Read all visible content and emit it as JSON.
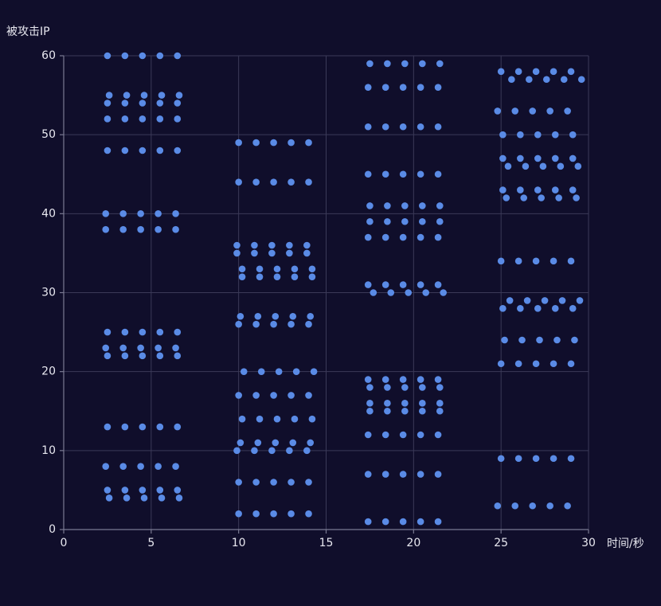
{
  "chart_data": {
    "type": "scatter",
    "x_label": "时间/秒",
    "y_label": "被攻击IP",
    "color": "#5a8be6",
    "grid": true,
    "xlim": [
      0,
      30
    ],
    "xticks": [
      0,
      5,
      10,
      15,
      20,
      25,
      30
    ],
    "ylim": [
      0,
      60
    ],
    "yticks": [
      0,
      10,
      20,
      30,
      40,
      50,
      60
    ],
    "x": [
      2.5,
      3.5,
      4.5,
      5.5,
      6.5,
      2.6,
      3.6,
      4.6,
      5.6,
      6.6,
      2.5,
      3.5,
      4.5,
      5.5,
      6.5,
      2.5,
      3.5,
      4.5,
      5.5,
      6.5,
      2.5,
      3.5,
      4.5,
      5.5,
      6.5,
      2.4,
      3.4,
      4.4,
      5.4,
      6.4,
      2.4,
      3.4,
      4.4,
      5.4,
      6.4,
      2.5,
      3.5,
      4.5,
      5.5,
      6.5,
      2.4,
      3.4,
      4.4,
      5.4,
      6.4,
      2.5,
      3.5,
      4.5,
      5.5,
      6.5,
      2.5,
      3.5,
      4.5,
      5.5,
      6.5,
      2.4,
      3.4,
      4.4,
      5.4,
      6.4,
      2.5,
      3.5,
      4.5,
      5.5,
      6.5,
      2.6,
      3.6,
      4.6,
      5.6,
      6.6,
      10,
      11,
      12,
      13,
      14,
      10,
      11,
      12,
      13,
      14,
      9.9,
      10.9,
      11.9,
      12.9,
      13.9,
      9.9,
      10.9,
      11.9,
      12.9,
      13.9,
      10.2,
      11.2,
      12.2,
      13.2,
      14.2,
      10.2,
      11.2,
      12.2,
      13.2,
      14.2,
      10.1,
      11.1,
      12.1,
      13.1,
      14.1,
      10,
      11,
      12,
      13,
      14,
      10.3,
      11.3,
      12.3,
      13.3,
      14.3,
      10,
      11,
      12,
      13,
      14,
      10.2,
      11.2,
      12.2,
      13.2,
      14.2,
      10.1,
      11.1,
      12.1,
      13.1,
      14.1,
      9.9,
      10.9,
      11.9,
      12.9,
      13.9,
      10,
      11,
      12,
      13,
      14,
      10,
      11,
      12,
      13,
      14,
      17.5,
      18.5,
      19.5,
      20.5,
      21.5,
      17.4,
      18.4,
      19.4,
      20.4,
      21.4,
      17.4,
      18.4,
      19.4,
      20.4,
      21.4,
      17.4,
      18.4,
      19.4,
      20.4,
      21.4,
      17.5,
      18.5,
      19.5,
      20.5,
      21.5,
      17.5,
      18.5,
      19.5,
      20.5,
      21.5,
      17.4,
      18.4,
      19.4,
      20.4,
      21.4,
      17.4,
      18.4,
      19.4,
      20.4,
      21.4,
      17.7,
      18.7,
      19.7,
      20.7,
      21.7,
      17.4,
      18.4,
      19.4,
      20.4,
      21.4,
      17.5,
      18.5,
      19.5,
      20.5,
      21.5,
      17.5,
      18.5,
      19.5,
      20.5,
      21.5,
      17.5,
      18.5,
      19.5,
      20.5,
      21.5,
      17.4,
      18.4,
      19.4,
      20.4,
      21.4,
      17.4,
      18.4,
      19.4,
      20.4,
      21.4,
      17.4,
      18.4,
      19.4,
      20.4,
      21.4,
      25,
      26,
      27,
      28,
      29,
      25.6,
      26.6,
      27.6,
      28.6,
      29.6,
      24.8,
      25.8,
      26.8,
      27.8,
      28.8,
      25.1,
      26.1,
      27.1,
      28.1,
      29.1,
      25.1,
      26.1,
      27.1,
      28.1,
      29.1,
      25.4,
      26.4,
      27.4,
      28.4,
      29.4,
      25.1,
      26.1,
      27.1,
      28.1,
      29.1,
      25.3,
      26.3,
      27.3,
      28.3,
      29.3,
      25,
      26,
      27,
      28,
      29,
      25.5,
      26.5,
      27.5,
      28.5,
      29.5,
      25.1,
      26.1,
      27.1,
      28.1,
      29.1,
      25.2,
      26.2,
      27.2,
      28.2,
      29.2,
      25,
      26,
      27,
      28,
      29,
      25,
      26,
      27,
      28,
      29,
      24.8,
      25.8,
      26.8,
      27.8,
      28.8
    ],
    "values": [
      60,
      60,
      60,
      60,
      60,
      55,
      55,
      55,
      55,
      55,
      54,
      54,
      54,
      54,
      54,
      52,
      52,
      52,
      52,
      52,
      48,
      48,
      48,
      48,
      48,
      40,
      40,
      40,
      40,
      40,
      38,
      38,
      38,
      38,
      38,
      25,
      25,
      25,
      25,
      25,
      23,
      23,
      23,
      23,
      23,
      22,
      22,
      22,
      22,
      22,
      13,
      13,
      13,
      13,
      13,
      8,
      8,
      8,
      8,
      8,
      5,
      5,
      5,
      5,
      5,
      4,
      4,
      4,
      4,
      4,
      49,
      49,
      49,
      49,
      49,
      44,
      44,
      44,
      44,
      44,
      36,
      36,
      36,
      36,
      36,
      35,
      35,
      35,
      35,
      35,
      33,
      33,
      33,
      33,
      33,
      32,
      32,
      32,
      32,
      32,
      27,
      27,
      27,
      27,
      27,
      26,
      26,
      26,
      26,
      26,
      20,
      20,
      20,
      20,
      20,
      17,
      17,
      17,
      17,
      17,
      14,
      14,
      14,
      14,
      14,
      11,
      11,
      11,
      11,
      11,
      10,
      10,
      10,
      10,
      10,
      6,
      6,
      6,
      6,
      6,
      2,
      2,
      2,
      2,
      2,
      59,
      59,
      59,
      59,
      59,
      56,
      56,
      56,
      56,
      56,
      51,
      51,
      51,
      51,
      51,
      45,
      45,
      45,
      45,
      45,
      41,
      41,
      41,
      41,
      41,
      39,
      39,
      39,
      39,
      39,
      37,
      37,
      37,
      37,
      37,
      31,
      31,
      31,
      31,
      31,
      30,
      30,
      30,
      30,
      30,
      19,
      19,
      19,
      19,
      19,
      18,
      18,
      18,
      18,
      18,
      16,
      16,
      16,
      16,
      16,
      15,
      15,
      15,
      15,
      15,
      12,
      12,
      12,
      12,
      12,
      7,
      7,
      7,
      7,
      7,
      1,
      1,
      1,
      1,
      1,
      58,
      58,
      58,
      58,
      58,
      57,
      57,
      57,
      57,
      57,
      53,
      53,
      53,
      53,
      53,
      50,
      50,
      50,
      50,
      50,
      47,
      47,
      47,
      47,
      47,
      46,
      46,
      46,
      46,
      46,
      43,
      43,
      43,
      43,
      43,
      42,
      42,
      42,
      42,
      42,
      34,
      34,
      34,
      34,
      34,
      29,
      29,
      29,
      29,
      29,
      28,
      28,
      28,
      28,
      28,
      24,
      24,
      24,
      24,
      24,
      21,
      21,
      21,
      21,
      21,
      9,
      9,
      9,
      9,
      9,
      3,
      3,
      3,
      3,
      3
    ]
  }
}
